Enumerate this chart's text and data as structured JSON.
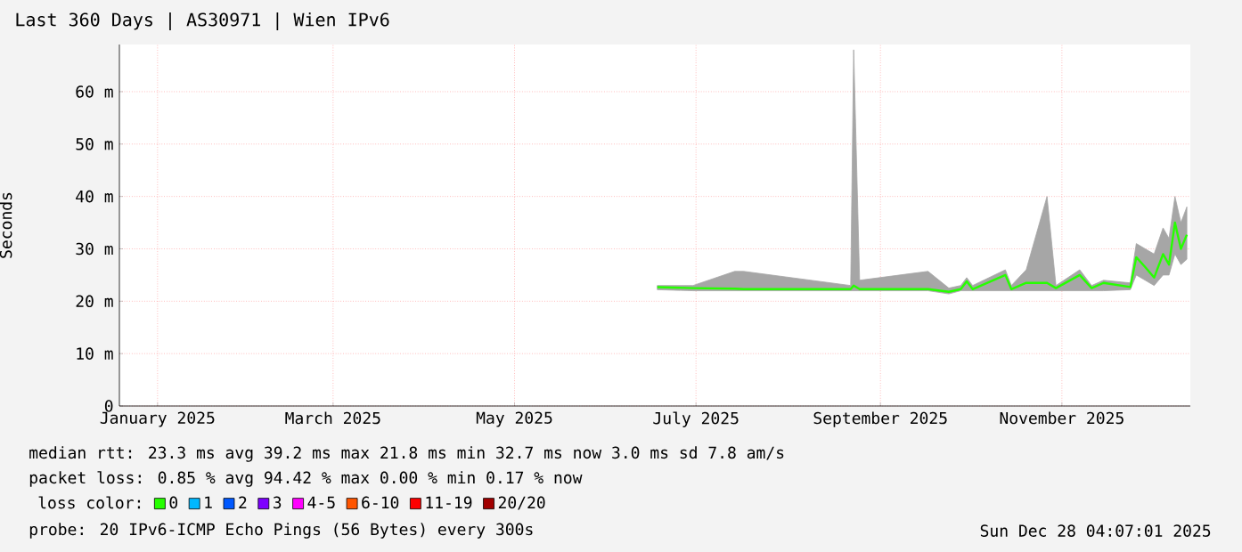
{
  "chart_data": {
    "type": "line",
    "title": "Last 360 Days | AS30971 | Wien IPv6",
    "ylabel": "Seconds",
    "xlim": [
      "2025-01-02T04:07",
      "2025-12-28T04:07"
    ],
    "xticks": [
      {
        "value": "2025-01-15",
        "label": "January 2025"
      },
      {
        "value": "2025-03-15",
        "label": "March 2025"
      },
      {
        "value": "2025-05-15",
        "label": "May 2025"
      },
      {
        "value": "2025-07-15",
        "label": "July 2025"
      },
      {
        "value": "2025-09-15",
        "label": "September 2025"
      },
      {
        "value": "2025-11-15",
        "label": "November 2025"
      }
    ],
    "ylim": [
      0,
      69
    ],
    "yticks": [
      {
        "value": 0,
        "label": "0"
      },
      {
        "value": 10,
        "label": "10 m"
      },
      {
        "value": 20,
        "label": "20 m"
      },
      {
        "value": 30,
        "label": "30 m"
      },
      {
        "value": 40,
        "label": "40 m"
      },
      {
        "value": 50,
        "label": "50 m"
      },
      {
        "value": 60,
        "label": "60 m"
      }
    ],
    "grid": true,
    "legend": "bottom",
    "legend_title": "loss color:",
    "series": [
      {
        "name": "0",
        "color": "#26ff00",
        "x": [
          "2025-07-02",
          "2025-07-14",
          "2025-07-28",
          "2025-07-31",
          "2025-09-05",
          "2025-09-06",
          "2025-09-08",
          "2025-10-01",
          "2025-10-08",
          "2025-10-12",
          "2025-10-14",
          "2025-10-16",
          "2025-10-27",
          "2025-10-29",
          "2025-11-03",
          "2025-11-10",
          "2025-11-13",
          "2025-11-21",
          "2025-11-25",
          "2025-11-29",
          "2025-12-08",
          "2025-12-10",
          "2025-12-13",
          "2025-12-16",
          "2025-12-19",
          "2025-12-21",
          "2025-12-23",
          "2025-12-25",
          "2025-12-27"
        ],
        "values": [
          22.7,
          22.5,
          22.4,
          22.3,
          22.3,
          23,
          22.3,
          22.3,
          21.8,
          22.3,
          23.8,
          22.3,
          25,
          22.3,
          23.5,
          23.5,
          22.5,
          25,
          22.5,
          23.5,
          22.7,
          28.4,
          26.5,
          24.5,
          29,
          27,
          35,
          30,
          32.7
        ],
        "lower": [
          22.2,
          22,
          22,
          22,
          22,
          22,
          22,
          22,
          21.4,
          22,
          22,
          22,
          22,
          22,
          22,
          22,
          22,
          22,
          22,
          22,
          22.2,
          25,
          24,
          23,
          25,
          25,
          29,
          27,
          28
        ],
        "upper": [
          23,
          23,
          25.7,
          25.7,
          23,
          68,
          24,
          25.7,
          22.5,
          23,
          24.5,
          23,
          26,
          23,
          26,
          40,
          23,
          26,
          23,
          24,
          23.5,
          31,
          30,
          29,
          34,
          32,
          40,
          35,
          38
        ]
      },
      {
        "name": "1",
        "color": "#00b8ff"
      },
      {
        "name": "2",
        "color": "#0059ff"
      },
      {
        "name": "3",
        "color": "#7e00ff"
      },
      {
        "name": "4-5",
        "color": "#ff00fe"
      },
      {
        "name": "6-10",
        "color": "#ff5500"
      },
      {
        "name": "11-19",
        "color": "#ff0000"
      },
      {
        "name": "20/20",
        "color": "#a10000"
      }
    ],
    "annotations": [
      "median rtt:  23.3 ms avg  39.2 ms max  21.8 ms min  32.7 ms now  3.0 ms sd  7.8  am/s",
      "packet loss: 0.85 % avg  94.42 % max  0.00 % min  0.17 % now",
      "probe:  20 IPv6-ICMP Echo Pings (56 Bytes) every 300s",
      "Sun Dec 28 04:07:01 2025"
    ]
  }
}
